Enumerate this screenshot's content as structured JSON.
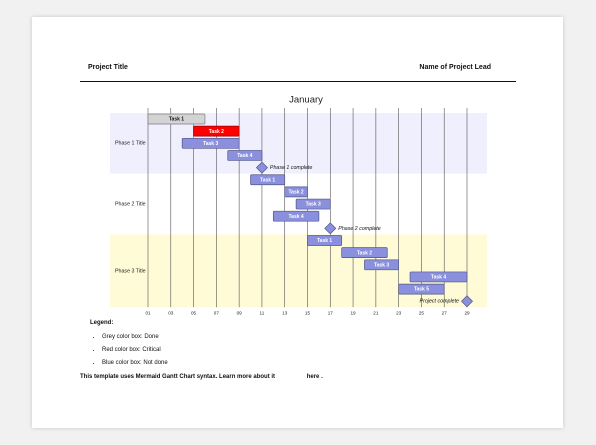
{
  "header": {
    "left": "Project Title",
    "right": "Name of Project Lead"
  },
  "chart_data": {
    "type": "gantt",
    "title": "January",
    "xlim": [
      1,
      29
    ],
    "xticks": [
      {
        "value": 1,
        "label": "01"
      },
      {
        "value": 3,
        "label": "03"
      },
      {
        "value": 5,
        "label": "05"
      },
      {
        "value": 7,
        "label": "07"
      },
      {
        "value": 9,
        "label": "09"
      },
      11,
      13,
      15,
      17,
      19,
      21,
      23,
      25,
      27,
      29
    ],
    "grid": true,
    "sections": [
      {
        "name": "Phase 1 Title",
        "color": "#efeffd",
        "tasks": [
          {
            "name": "Task 1",
            "start": 1,
            "end": 6,
            "color": "#d3d3d3"
          },
          {
            "name": "Task 2",
            "start": 5,
            "end": 9,
            "color": "#ff0000"
          },
          {
            "name": "Task 3",
            "start": 4,
            "end": 9,
            "color": "#8a90dd"
          },
          {
            "name": "Task 4",
            "start": 8,
            "end": 11,
            "color": "#8a90dd"
          }
        ],
        "milestone": {
          "name": "Phase 1 complete",
          "date": 11,
          "color": "#8a90dd"
        }
      },
      {
        "name": "Phase 2 Title",
        "color": "#ffffff",
        "tasks": [
          {
            "name": "Task 1",
            "start": 10,
            "end": 13,
            "color": "#8a90dd"
          },
          {
            "name": "Task 2",
            "start": 13,
            "end": 15,
            "color": "#8a90dd"
          },
          {
            "name": "Task 3",
            "start": 14,
            "end": 17,
            "color": "#8a90dd"
          },
          {
            "name": "Task 4",
            "start": 12,
            "end": 16,
            "color": "#8a90dd"
          }
        ],
        "milestone": {
          "name": "Phase 2 complete",
          "date": 17,
          "color": "#8a90dd"
        }
      },
      {
        "name": "Phase 3 Title",
        "color": "#fefbd6",
        "tasks": [
          {
            "name": "Task 1",
            "start": 15,
            "end": 18,
            "color": "#8a90dd"
          },
          {
            "name": "Task 2",
            "start": 18,
            "end": 22,
            "color": "#8a90dd"
          },
          {
            "name": "Task 3",
            "start": 20,
            "end": 23,
            "color": "#8a90dd"
          },
          {
            "name": "Task 4",
            "start": 24,
            "end": 29,
            "color": "#8a90dd"
          },
          {
            "name": "Task 5",
            "start": 23,
            "end": 27,
            "color": "#8a90dd"
          }
        ],
        "milestone": {
          "name": "Project complete",
          "date": 29,
          "color": "#8a90dd"
        }
      }
    ]
  },
  "legend": {
    "title": "Legend:",
    "items": [
      "Grey color box: Done",
      "Red color box: Critical",
      "Blue color box: Not done"
    ]
  },
  "footer": {
    "text": "This template uses Mermaid Gantt Chart syntax. Learn more about it",
    "link": "here",
    "end": "."
  }
}
